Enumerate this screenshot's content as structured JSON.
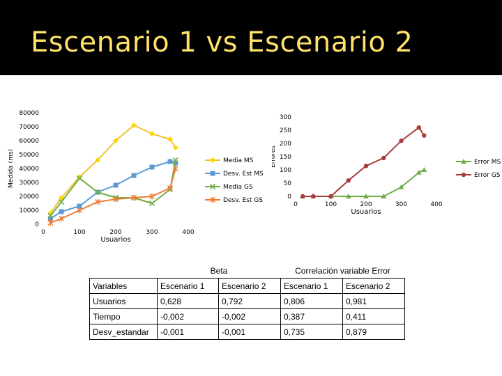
{
  "slide": {
    "title": "Escenario 1 vs Escenario 2"
  },
  "colors": {
    "ms": "#f2c12e",
    "ms_marker": "#ffd700",
    "desv_ms": "#5b9bd5",
    "gs": "#70ad47",
    "desv_gs": "#ed7d31",
    "error_ms": "#70ad47",
    "error_gs": "#a63c3c",
    "title": "#ffe26a"
  },
  "chart_data": [
    {
      "type": "line",
      "title": "",
      "xlabel": "Usuarios",
      "ylabel": "Medida (ms)",
      "xlim": [
        0,
        400
      ],
      "ylim": [
        0,
        80000
      ],
      "xticks": [
        "0",
        "100",
        "200",
        "300",
        "400"
      ],
      "yticks": [
        "0",
        "10000",
        "20000",
        "30000",
        "40000",
        "50000",
        "60000",
        "70000",
        "80000"
      ],
      "grid": false,
      "legend": "right",
      "series": [
        {
          "name": "Media MS",
          "marker": "diamond",
          "x": [
            20,
            50,
            100,
            150,
            200,
            250,
            300,
            350,
            365
          ],
          "y": [
            8000,
            19000,
            34000,
            46000,
            60000,
            71000,
            65000,
            61000,
            55000
          ]
        },
        {
          "name": "Desv. Est MS",
          "marker": "square",
          "x": [
            20,
            50,
            100,
            150,
            200,
            250,
            300,
            350,
            365
          ],
          "y": [
            4000,
            9000,
            13000,
            23000,
            28000,
            35000,
            41000,
            45000,
            44000
          ]
        },
        {
          "name": "Media GS",
          "marker": "x",
          "x": [
            20,
            50,
            100,
            150,
            200,
            250,
            300,
            350,
            365
          ],
          "y": [
            6000,
            16000,
            33000,
            23000,
            19000,
            19000,
            15000,
            25000,
            46000
          ]
        },
        {
          "name": "Desv. Est GS",
          "marker": "star",
          "x": [
            20,
            50,
            100,
            150,
            200,
            250,
            300,
            350,
            365
          ],
          "y": [
            1000,
            4000,
            10000,
            16000,
            18000,
            19000,
            20000,
            26000,
            40000
          ]
        }
      ]
    },
    {
      "type": "line",
      "title": "",
      "xlabel": "Usuarios",
      "ylabel": "Errores",
      "xlim": [
        0,
        400
      ],
      "ylim": [
        0,
        300
      ],
      "xticks": [
        "0",
        "100",
        "200",
        "300",
        "400"
      ],
      "yticks": [
        "0",
        "50",
        "100",
        "150",
        "200",
        "250",
        "300"
      ],
      "grid": false,
      "legend": "right",
      "series": [
        {
          "name": "Error MS",
          "marker": "triangle",
          "x": [
            20,
            50,
            100,
            150,
            200,
            250,
            300,
            350,
            365
          ],
          "y": [
            0,
            0,
            0,
            0,
            0,
            0,
            35,
            90,
            100
          ]
        },
        {
          "name": "Error GS",
          "marker": "circle",
          "x": [
            20,
            50,
            100,
            150,
            200,
            250,
            300,
            350,
            365
          ],
          "y": [
            0,
            0,
            0,
            60,
            115,
            145,
            210,
            260,
            230
          ]
        }
      ]
    }
  ],
  "table": {
    "group_beta": "Beta",
    "group_corr": "Correlación variable Error",
    "header": [
      "Variables",
      "Escenario 1",
      "Escenario 2",
      "Escenario 1",
      "Escenario 2"
    ],
    "rows": [
      [
        "Usuarios",
        "0,628",
        "0,792",
        "0,806",
        "0,981"
      ],
      [
        "Tiempo",
        "-0,002",
        "-0,002",
        "0,387",
        "0,411"
      ],
      [
        "Desv_estandar",
        "-0,001",
        "-0,001",
        "0,735",
        "0,879"
      ]
    ]
  }
}
